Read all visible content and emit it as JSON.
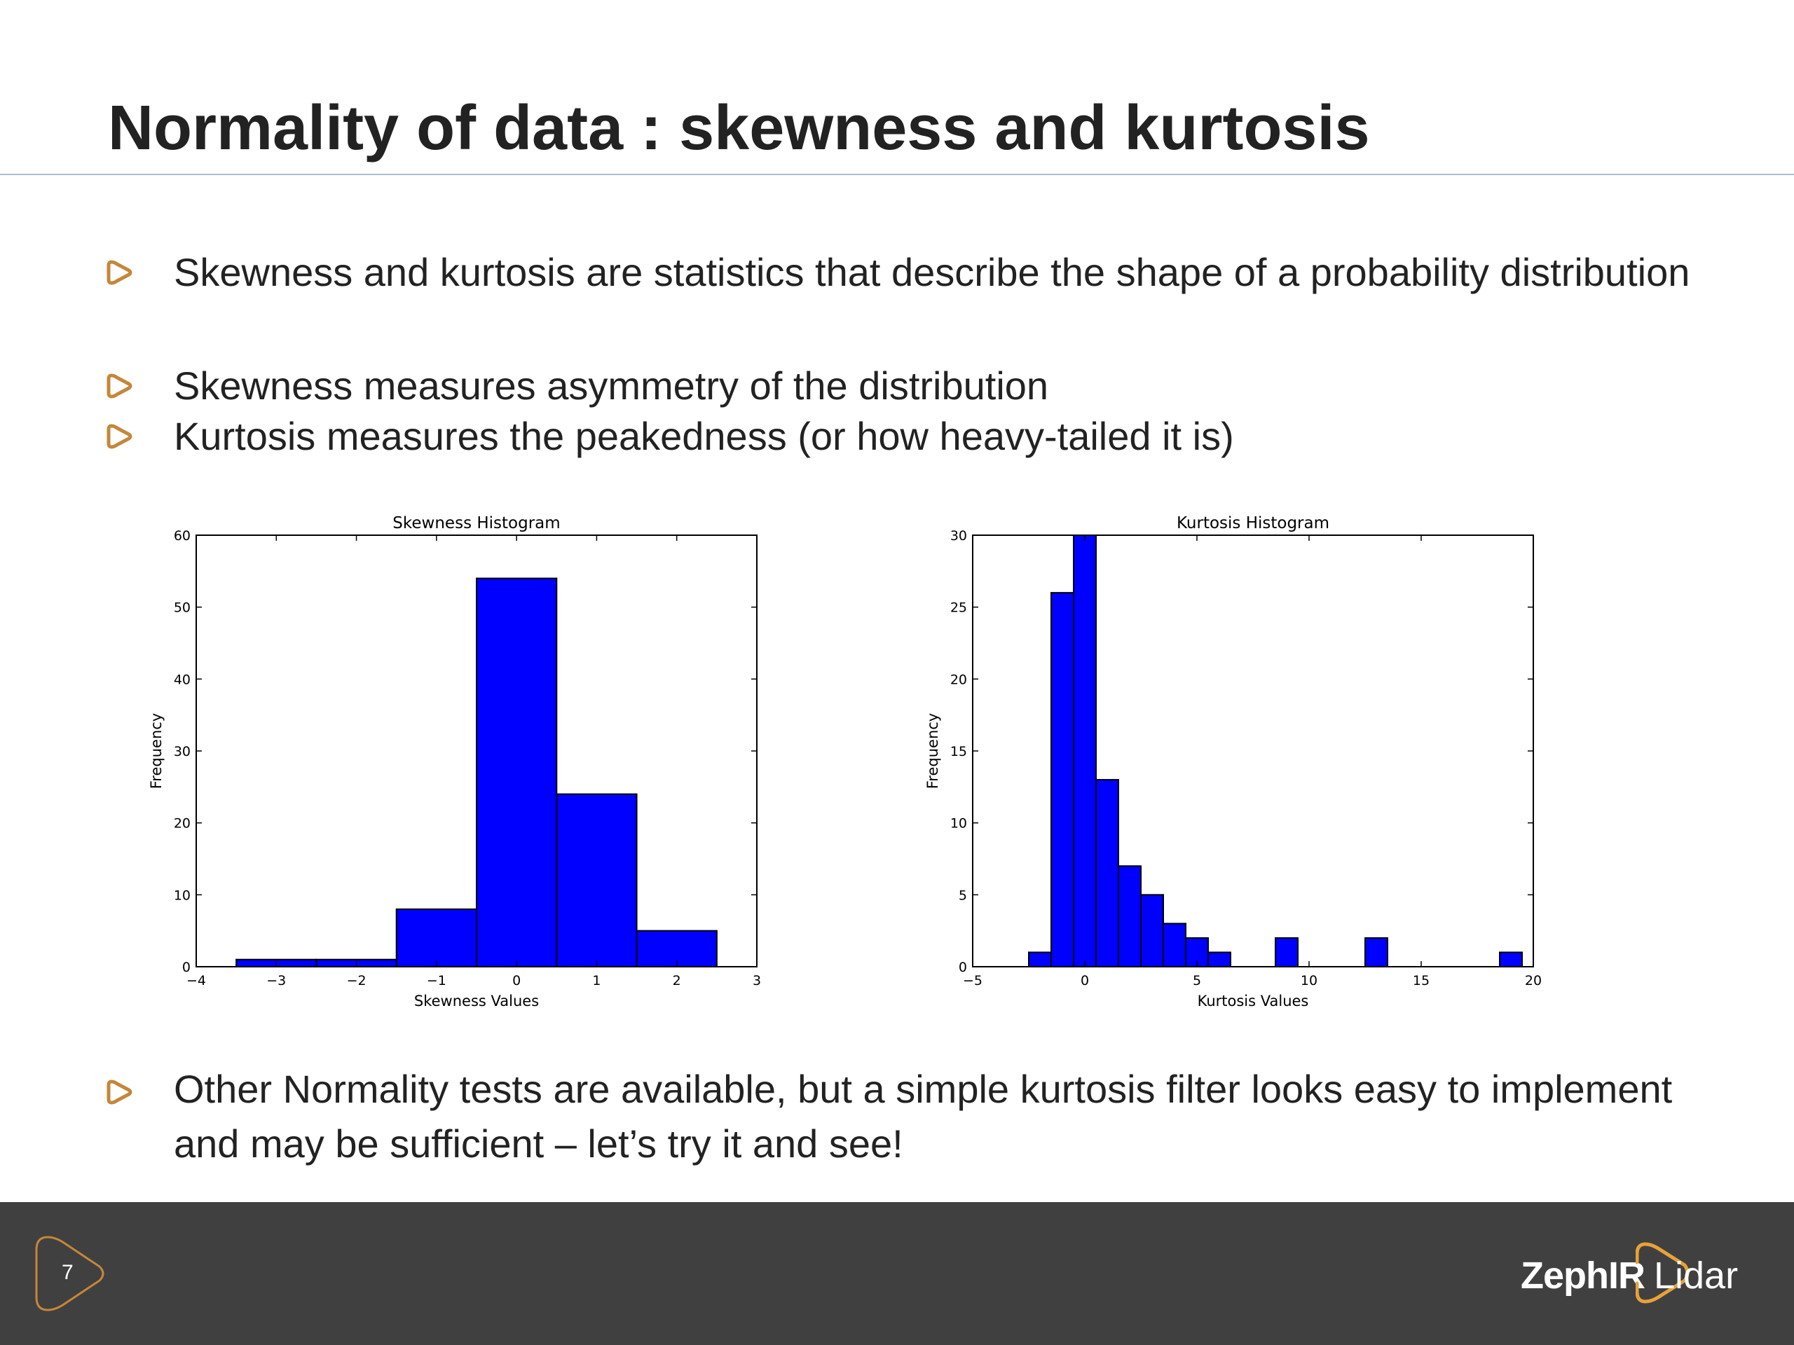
{
  "slide": {
    "title": "Normality of data : skewness and kurtosis",
    "bullets_top": [
      {
        "text": "Skewness and kurtosis are statistics that describe the shape of a probability distribution"
      },
      {
        "text": "Skewness measures asymmetry of the distribution"
      },
      {
        "text": "Kurtosis measures the peakedness (or how heavy-tailed it is)"
      }
    ],
    "bullet_bottom": {
      "text": "Other Normality tests are available, but a simple kurtosis filter looks easy to implement and may be sufficient – let’s try it and see!"
    },
    "accent_color": "#c4873a",
    "bullet_icon": "rounded-triangle-outline-icon"
  },
  "footer": {
    "page_number": "7",
    "logo_brand": "ZephIR",
    "logo_product": "Lidar",
    "background_color": "#404040"
  },
  "chart_data": [
    {
      "type": "bar",
      "title": "Skewness Histogram",
      "xlabel": "Skewness Values",
      "ylabel": "Frequency",
      "xlim": [
        -4,
        3
      ],
      "ylim": [
        0,
        60
      ],
      "xticks": [
        "−4",
        "−3",
        "−2",
        "−1",
        "0",
        "1",
        "2",
        "3"
      ],
      "yticks": [
        "0",
        "10",
        "20",
        "30",
        "40",
        "50",
        "60"
      ],
      "xtick_values": [
        -4,
        -3,
        -2,
        -1,
        0,
        1,
        2,
        3
      ],
      "ytick_values": [
        0,
        10,
        20,
        30,
        40,
        50,
        60
      ],
      "bins": [
        {
          "x0": -3.5,
          "x1": -2.5,
          "value": 1
        },
        {
          "x0": -2.5,
          "x1": -1.5,
          "value": 1
        },
        {
          "x0": -1.5,
          "x1": -0.5,
          "value": 8
        },
        {
          "x0": -0.5,
          "x1": 0.5,
          "value": 54
        },
        {
          "x0": 0.5,
          "x1": 1.5,
          "value": 24
        },
        {
          "x0": 1.5,
          "x1": 2.5,
          "value": 5
        }
      ],
      "bar_color": "#0000ff",
      "grid": false
    },
    {
      "type": "bar",
      "title": "Kurtosis Histogram",
      "xlabel": "Kurtosis Values",
      "ylabel": "Frequency",
      "xlim": [
        -5,
        20
      ],
      "ylim": [
        0,
        30
      ],
      "xticks": [
        "−5",
        "0",
        "5",
        "10",
        "15",
        "20"
      ],
      "yticks": [
        "0",
        "5",
        "10",
        "15",
        "20",
        "25",
        "30"
      ],
      "xtick_values": [
        -5,
        0,
        5,
        10,
        15,
        20
      ],
      "ytick_values": [
        0,
        5,
        10,
        15,
        20,
        25,
        30
      ],
      "bins": [
        {
          "x0": -2.5,
          "x1": -1.5,
          "value": 1
        },
        {
          "x0": -1.5,
          "x1": -0.5,
          "value": 26
        },
        {
          "x0": -0.5,
          "x1": 0.5,
          "value": 30
        },
        {
          "x0": 0.5,
          "x1": 1.5,
          "value": 13
        },
        {
          "x0": 1.5,
          "x1": 2.5,
          "value": 7
        },
        {
          "x0": 2.5,
          "x1": 3.5,
          "value": 5
        },
        {
          "x0": 3.5,
          "x1": 4.5,
          "value": 3
        },
        {
          "x0": 4.5,
          "x1": 5.5,
          "value": 2
        },
        {
          "x0": 5.5,
          "x1": 6.5,
          "value": 1
        },
        {
          "x0": 8.5,
          "x1": 9.5,
          "value": 2
        },
        {
          "x0": 12.5,
          "x1": 13.5,
          "value": 2
        },
        {
          "x0": 18.5,
          "x1": 19.5,
          "value": 1
        }
      ],
      "bar_color": "#0000ff",
      "grid": false
    }
  ]
}
